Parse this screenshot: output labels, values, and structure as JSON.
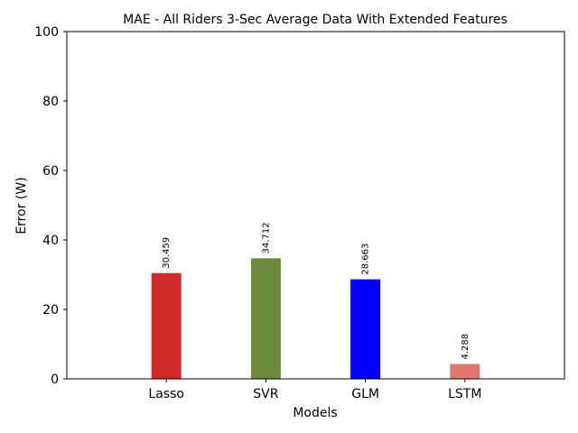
{
  "chart_data": {
    "type": "bar",
    "title": "MAE - All Riders 3-Sec Average Data With Extended Features",
    "xlabel": "Models",
    "ylabel": "Error (W)",
    "categories": [
      "Lasso",
      "SVR",
      "GLM",
      "LSTM"
    ],
    "values": [
      30.459,
      34.712,
      28.663,
      4.288
    ],
    "data_labels": [
      "30.459",
      "34.712",
      "28.663",
      "4.288"
    ],
    "colors": [
      "#d0282a",
      "#6b8a3c",
      "#0000ff",
      "#e0786e"
    ],
    "ylim": [
      0,
      100
    ],
    "yticks": [
      0,
      20,
      40,
      60,
      80,
      100
    ],
    "ytick_labels": [
      "0",
      "20",
      "40",
      "60",
      "80",
      "100"
    ],
    "grid": false,
    "legend": "none"
  }
}
